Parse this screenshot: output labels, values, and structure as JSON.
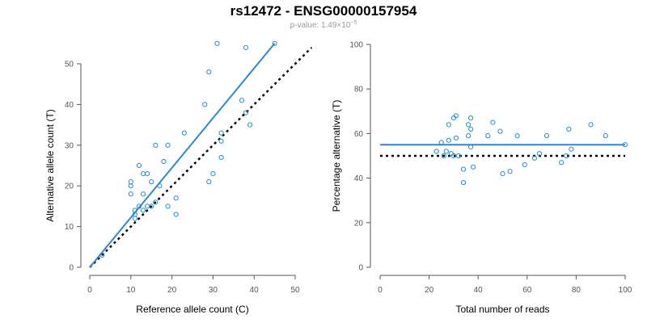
{
  "title": "rs12472 - ENSG00000157954",
  "subtitle": {
    "prefix": "p-value: 1.49×10",
    "exponent": "−5"
  },
  "colors": {
    "points": "#1f8fcf",
    "fit_line": "#2a87d9",
    "reference_line": "#000000"
  },
  "chart_data": [
    {
      "type": "scatter",
      "xlabel": "Reference allele count (C)",
      "ylabel": "Alternative allele count (T)",
      "xlim": [
        0,
        50
      ],
      "ylim": [
        0,
        50
      ],
      "xticks": [
        0,
        10,
        20,
        30,
        40,
        50
      ],
      "yticks": [
        0,
        10,
        20,
        30,
        40,
        50
      ],
      "grid": false,
      "points": [
        {
          "x": 3,
          "y": 3
        },
        {
          "x": 10,
          "y": 21
        },
        {
          "x": 10,
          "y": 20
        },
        {
          "x": 10,
          "y": 18
        },
        {
          "x": 11,
          "y": 14
        },
        {
          "x": 11,
          "y": 13
        },
        {
          "x": 11,
          "y": 12
        },
        {
          "x": 12,
          "y": 25
        },
        {
          "x": 12,
          "y": 15
        },
        {
          "x": 13,
          "y": 23
        },
        {
          "x": 13,
          "y": 18
        },
        {
          "x": 13,
          "y": 14
        },
        {
          "x": 14,
          "y": 23
        },
        {
          "x": 14,
          "y": 15
        },
        {
          "x": 15,
          "y": 21
        },
        {
          "x": 15,
          "y": 15
        },
        {
          "x": 16,
          "y": 30
        },
        {
          "x": 16,
          "y": 16
        },
        {
          "x": 17,
          "y": 20
        },
        {
          "x": 18,
          "y": 26
        },
        {
          "x": 19,
          "y": 30
        },
        {
          "x": 19,
          "y": 15
        },
        {
          "x": 21,
          "y": 17
        },
        {
          "x": 21,
          "y": 13
        },
        {
          "x": 23,
          "y": 33
        },
        {
          "x": 28,
          "y": 40
        },
        {
          "x": 29,
          "y": 48
        },
        {
          "x": 29,
          "y": 21
        },
        {
          "x": 30,
          "y": 23
        },
        {
          "x": 31,
          "y": 55
        },
        {
          "x": 32,
          "y": 33
        },
        {
          "x": 32,
          "y": 31
        },
        {
          "x": 32,
          "y": 27
        },
        {
          "x": 37,
          "y": 41
        },
        {
          "x": 38,
          "y": 54
        },
        {
          "x": 38,
          "y": 38
        },
        {
          "x": 39,
          "y": 35
        },
        {
          "x": 45,
          "y": 55
        }
      ],
      "fit_line": {
        "x": [
          0,
          45
        ],
        "y": [
          0,
          55
        ]
      },
      "reference_line": {
        "x": [
          0,
          54
        ],
        "y": [
          0,
          54
        ]
      }
    },
    {
      "type": "scatter",
      "xlabel": "Total number of reads",
      "ylabel": "Percentage alternative (T)",
      "xlim": [
        0,
        100
      ],
      "ylim": [
        0,
        100
      ],
      "xticks": [
        0,
        20,
        40,
        60,
        80,
        100
      ],
      "yticks": [
        0,
        20,
        40,
        60,
        80,
        100
      ],
      "grid": false,
      "points": [
        {
          "x": 23,
          "y": 52
        },
        {
          "x": 25,
          "y": 56
        },
        {
          "x": 26,
          "y": 50
        },
        {
          "x": 27,
          "y": 52
        },
        {
          "x": 28,
          "y": 64
        },
        {
          "x": 28,
          "y": 57
        },
        {
          "x": 29,
          "y": 51
        },
        {
          "x": 30,
          "y": 67
        },
        {
          "x": 30,
          "y": 50
        },
        {
          "x": 31,
          "y": 68
        },
        {
          "x": 31,
          "y": 58
        },
        {
          "x": 32,
          "y": 50
        },
        {
          "x": 34,
          "y": 44
        },
        {
          "x": 34,
          "y": 38
        },
        {
          "x": 36,
          "y": 59
        },
        {
          "x": 36,
          "y": 64
        },
        {
          "x": 37,
          "y": 62
        },
        {
          "x": 37,
          "y": 54
        },
        {
          "x": 37,
          "y": 67
        },
        {
          "x": 38,
          "y": 45
        },
        {
          "x": 44,
          "y": 59
        },
        {
          "x": 46,
          "y": 65
        },
        {
          "x": 49,
          "y": 61
        },
        {
          "x": 50,
          "y": 42
        },
        {
          "x": 53,
          "y": 43
        },
        {
          "x": 56,
          "y": 59
        },
        {
          "x": 59,
          "y": 46
        },
        {
          "x": 63,
          "y": 49
        },
        {
          "x": 65,
          "y": 51
        },
        {
          "x": 68,
          "y": 59
        },
        {
          "x": 74,
          "y": 47
        },
        {
          "x": 76,
          "y": 50
        },
        {
          "x": 77,
          "y": 62
        },
        {
          "x": 78,
          "y": 53
        },
        {
          "x": 86,
          "y": 64
        },
        {
          "x": 92,
          "y": 59
        },
        {
          "x": 100,
          "y": 55
        }
      ],
      "fit_line": {
        "x": [
          0,
          100
        ],
        "y": [
          55,
          55
        ]
      },
      "reference_line": {
        "x": [
          0,
          100
        ],
        "y": [
          50,
          50
        ]
      }
    }
  ]
}
